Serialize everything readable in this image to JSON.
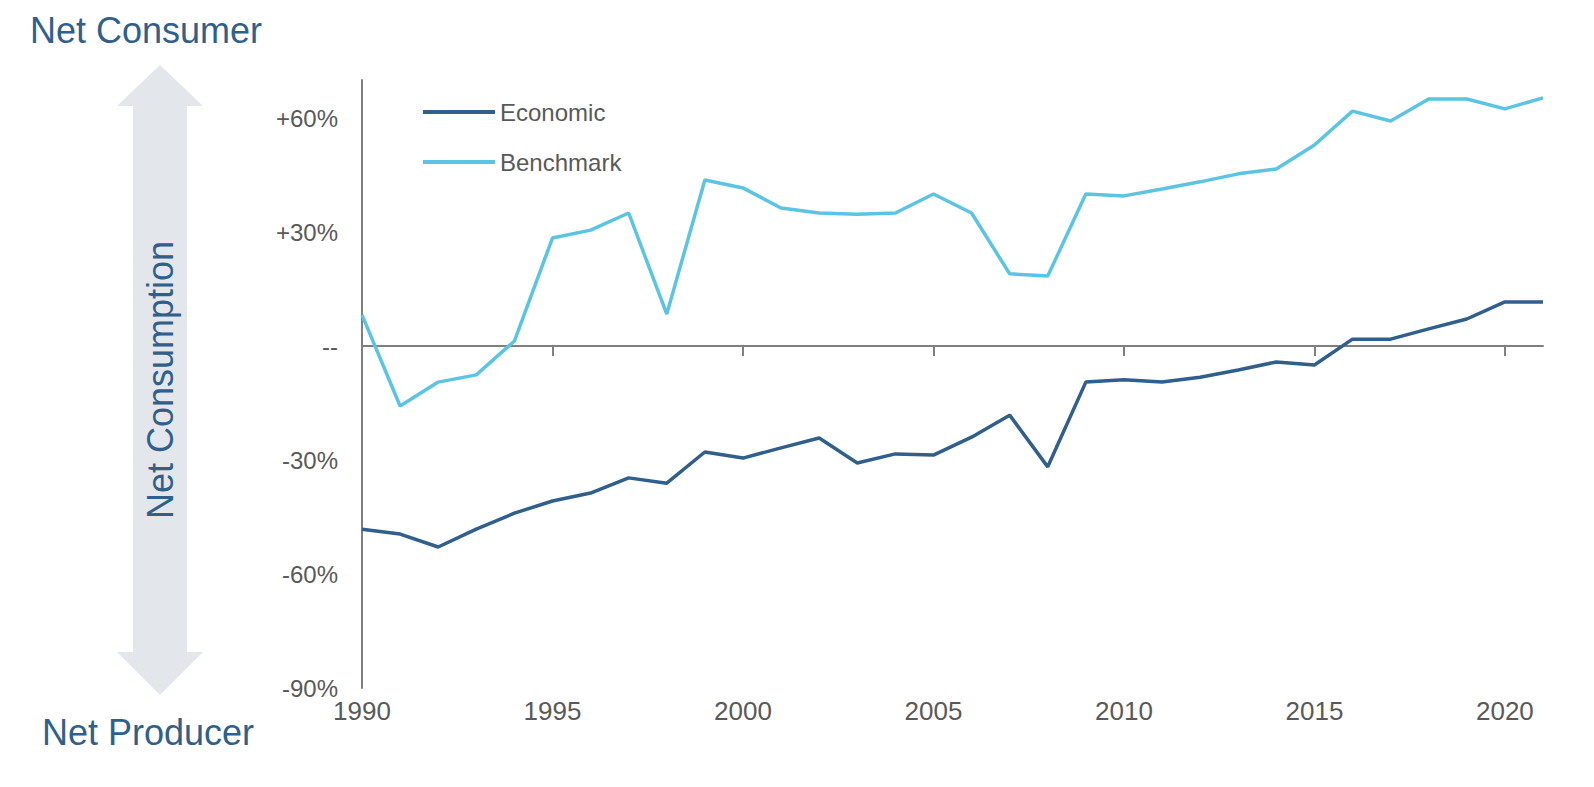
{
  "chart_data": {
    "type": "line",
    "ylabel": "Net Consumption",
    "annotations": [
      "Net Consumer",
      "Net Producer"
    ],
    "x": [
      1990,
      1991,
      1992,
      1993,
      1994,
      1995,
      1996,
      1997,
      1998,
      1999,
      2000,
      2001,
      2002,
      2003,
      2004,
      2005,
      2006,
      2007,
      2008,
      2009,
      2010,
      2011,
      2012,
      2013,
      2014,
      2015,
      2016,
      2017,
      2018,
      2019,
      2020,
      2021
    ],
    "series": [
      {
        "name": "Economic",
        "color": "#2f5f8a",
        "values": [
          -48.2,
          -49.5,
          -52.9,
          -48.2,
          -44,
          -40.8,
          -38.7,
          -34.7,
          -36.1,
          -27.9,
          -29.5,
          -26.8,
          -24.2,
          -30.8,
          -28.4,
          -28.7,
          -24,
          -18.2,
          -31.8,
          -9.5,
          -8.9,
          -9.5,
          -8.2,
          -6.3,
          -4.2,
          -5,
          1.8,
          1.8,
          4.5,
          7.1,
          11.6,
          11.6
        ]
      },
      {
        "name": "Benchmark",
        "color": "#5bc4e3",
        "values": [
          8.2,
          -15.8,
          -9.5,
          -7.6,
          1.3,
          28.4,
          30.5,
          35,
          8.4,
          43.7,
          41.6,
          36.3,
          35,
          34.7,
          35,
          40,
          35,
          19,
          18.4,
          40,
          39.5,
          41.3,
          43.2,
          45.3,
          46.6,
          52.9,
          61.8,
          59.2,
          65,
          65,
          62.4,
          65.3
        ]
      }
    ],
    "xlim": [
      1990,
      2021
    ],
    "xticks": [
      1990,
      1995,
      2000,
      2005,
      2010,
      2015,
      2020
    ],
    "ylim": [
      -90,
      70
    ],
    "yticks": [
      {
        "value": -90,
        "label": "-90%"
      },
      {
        "value": -60,
        "label": "-60%"
      },
      {
        "value": -30,
        "label": "-30%"
      },
      {
        "value": 0,
        "label": "--"
      },
      {
        "value": 30,
        "label": "+30%"
      },
      {
        "value": 60,
        "label": "+60%"
      }
    ],
    "legend": "upper left",
    "grid": false
  }
}
